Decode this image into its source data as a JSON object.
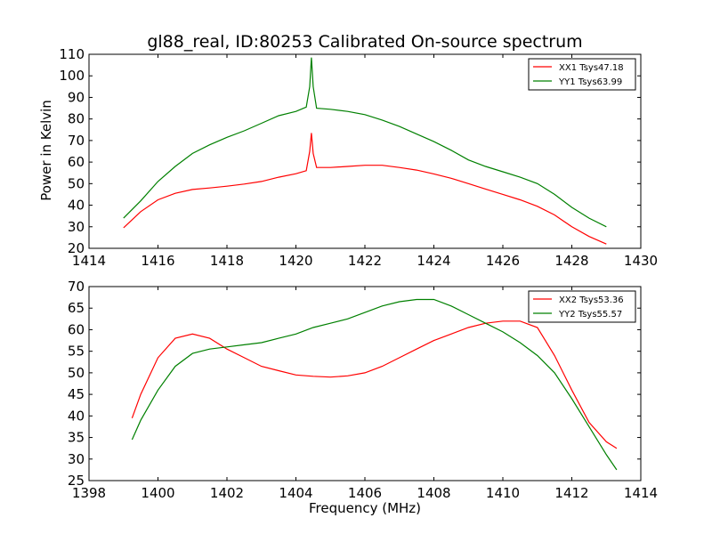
{
  "figure": {
    "title": "gl88_real, ID:80253 Calibrated On-source spectrum",
    "xlabel": "Frequency (MHz)"
  },
  "chart_data": [
    {
      "type": "line",
      "ylabel": "Power in Kelvin",
      "xlim": [
        1414,
        1430
      ],
      "ylim": [
        20,
        110
      ],
      "xticks": [
        1414,
        1416,
        1418,
        1420,
        1422,
        1424,
        1426,
        1428,
        1430
      ],
      "yticks": [
        20,
        30,
        40,
        50,
        60,
        70,
        80,
        90,
        100,
        110
      ],
      "legend": "top-right",
      "series": [
        {
          "name": "XX1 Tsys47.18",
          "color": "#ff0000",
          "x": [
            1415.0,
            1415.5,
            1416.0,
            1416.5,
            1417.0,
            1417.5,
            1418.0,
            1418.5,
            1419.0,
            1419.5,
            1420.0,
            1420.3,
            1420.4,
            1420.45,
            1420.5,
            1420.6,
            1421.0,
            1421.5,
            1422.0,
            1422.5,
            1423.0,
            1423.5,
            1424.0,
            1424.5,
            1425.0,
            1425.5,
            1426.0,
            1426.5,
            1427.0,
            1427.5,
            1428.0,
            1428.5,
            1429.0
          ],
          "y": [
            29.5,
            37,
            42.5,
            45.5,
            47.3,
            48,
            48.8,
            49.8,
            51,
            53,
            54.6,
            56,
            65,
            73.5,
            64,
            57.5,
            57.5,
            58,
            58.5,
            58.5,
            57.5,
            56.3,
            54.5,
            52.5,
            50,
            47.5,
            45,
            42.5,
            39.5,
            35.5,
            30,
            25.5,
            22
          ]
        },
        {
          "name": "YY1 Tsys63.99",
          "color": "#008000",
          "x": [
            1415.0,
            1415.5,
            1416.0,
            1416.5,
            1417.0,
            1417.5,
            1418.0,
            1418.5,
            1419.0,
            1419.5,
            1420.0,
            1420.3,
            1420.4,
            1420.45,
            1420.5,
            1420.6,
            1421.0,
            1421.5,
            1422.0,
            1422.5,
            1423.0,
            1423.5,
            1424.0,
            1424.5,
            1425.0,
            1425.5,
            1426.0,
            1426.5,
            1427.0,
            1427.5,
            1428.0,
            1428.5,
            1429.0
          ],
          "y": [
            34,
            42,
            51,
            58,
            64,
            68,
            71.5,
            74.5,
            78,
            81.5,
            83.5,
            85.5,
            95,
            108.5,
            95,
            85,
            84.5,
            83.5,
            82,
            79.5,
            76.5,
            73,
            69.5,
            65.5,
            61,
            58,
            55.5,
            53,
            50,
            45,
            39,
            34,
            30
          ]
        }
      ]
    },
    {
      "type": "line",
      "ylabel": "",
      "xlim": [
        1398,
        1414
      ],
      "ylim": [
        25,
        70
      ],
      "xticks": [
        1398,
        1400,
        1402,
        1404,
        1406,
        1408,
        1410,
        1412,
        1414
      ],
      "yticks": [
        25,
        30,
        35,
        40,
        45,
        50,
        55,
        60,
        65,
        70
      ],
      "legend": "top-right",
      "series": [
        {
          "name": "XX2 Tsys53.36",
          "color": "#ff0000",
          "x": [
            1399.25,
            1399.5,
            1400.0,
            1400.5,
            1401.0,
            1401.5,
            1402.0,
            1402.5,
            1403.0,
            1403.5,
            1404.0,
            1404.5,
            1405.0,
            1405.5,
            1406.0,
            1406.5,
            1407.0,
            1407.5,
            1408.0,
            1408.5,
            1409.0,
            1409.5,
            1410.0,
            1410.5,
            1411.0,
            1411.5,
            1412.0,
            1412.5,
            1413.0,
            1413.3
          ],
          "y": [
            39.5,
            45,
            53.5,
            58,
            59,
            58,
            55.5,
            53.5,
            51.5,
            50.5,
            49.5,
            49.2,
            49,
            49.3,
            50,
            51.5,
            53.5,
            55.5,
            57.5,
            59,
            60.5,
            61.5,
            62,
            62,
            60.5,
            54,
            46,
            38.5,
            34,
            32.5
          ]
        },
        {
          "name": "YY2 Tsys55.57",
          "color": "#008000",
          "x": [
            1399.25,
            1399.5,
            1400.0,
            1400.5,
            1401.0,
            1401.5,
            1402.0,
            1402.5,
            1403.0,
            1403.5,
            1404.0,
            1404.5,
            1405.0,
            1405.5,
            1406.0,
            1406.5,
            1407.0,
            1407.5,
            1408.0,
            1408.5,
            1409.0,
            1409.5,
            1410.0,
            1410.5,
            1411.0,
            1411.5,
            1412.0,
            1412.5,
            1413.0,
            1413.3
          ],
          "y": [
            34.5,
            39,
            46,
            51.5,
            54.5,
            55.5,
            56,
            56.5,
            57,
            58,
            59,
            60.5,
            61.5,
            62.5,
            64,
            65.5,
            66.5,
            67,
            67,
            65.5,
            63.5,
            61.5,
            59.5,
            57,
            54,
            50,
            44,
            37.5,
            31,
            27.5
          ]
        }
      ]
    }
  ]
}
